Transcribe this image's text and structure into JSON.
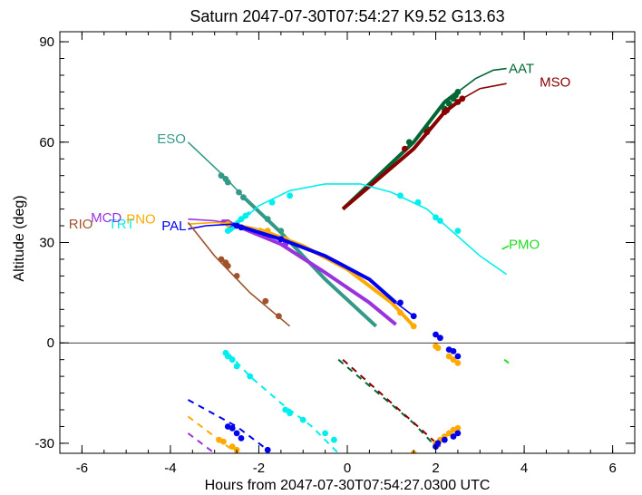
{
  "chart_data": {
    "type": "line",
    "title": "Saturn 2047-07-30T07:54:27  K9.52  G13.63",
    "xlabel": "Hours from 2047-07-30T07:54:27.0300 UTC",
    "ylabel": "Altitude (deg)",
    "xlim": [
      -6.5,
      6.5
    ],
    "ylim": [
      -33,
      93
    ],
    "xticks": [
      -6,
      -4,
      -2,
      0,
      2,
      4,
      6
    ],
    "yticks": [
      -30,
      0,
      30,
      60,
      90
    ],
    "xtick_labels": [
      "-6",
      "-4",
      "-2",
      "0",
      "2",
      "4",
      "6"
    ],
    "ytick_labels": [
      "-30",
      "0",
      "30",
      "60",
      "90"
    ],
    "horizon_line": 0,
    "grid": false,
    "colors": {
      "AAT": "#006633",
      "MSO": "#880000",
      "ESO": "#339988",
      "PMO": "#22dd22",
      "TRT": "#00eeee",
      "MCD": "#9933dd",
      "PNO": "#ffaa00",
      "PAL": "#0000ee",
      "RIO": "#a0522d"
    },
    "series": [
      {
        "name": "AAT",
        "label_pos": [
          3.65,
          82
        ],
        "thick": [
          [
            -0.1,
            40
          ],
          [
            1.5,
            60
          ],
          [
            2.2,
            72
          ],
          [
            2.5,
            75
          ]
        ],
        "thin": [
          [
            2.5,
            75
          ],
          [
            2.9,
            79
          ],
          [
            3.3,
            81.5
          ],
          [
            3.6,
            82
          ]
        ],
        "dashed": [
          [
            -0.2,
            -5
          ],
          [
            1.5,
            -24
          ],
          [
            2.0,
            -31
          ]
        ],
        "points": [
          [
            1.4,
            60
          ],
          [
            1.8,
            64
          ],
          [
            2.2,
            70
          ],
          [
            2.3,
            71.5
          ],
          [
            2.4,
            73
          ],
          [
            2.45,
            74
          ],
          [
            2.5,
            75
          ]
        ]
      },
      {
        "name": "MSO",
        "label_pos": [
          4.35,
          78
        ],
        "thick": [
          [
            -0.1,
            40
          ],
          [
            1.5,
            58
          ],
          [
            2.2,
            69
          ],
          [
            2.6,
            73
          ]
        ],
        "thin": [
          [
            2.6,
            73
          ],
          [
            3.0,
            76
          ],
          [
            3.6,
            77.5
          ]
        ],
        "dashed": [
          [
            -0.1,
            -5
          ],
          [
            1.6,
            -25
          ],
          [
            2.1,
            -31
          ]
        ],
        "points": [
          [
            1.3,
            58
          ],
          [
            1.8,
            63
          ],
          [
            2.2,
            69
          ],
          [
            2.25,
            69.5
          ],
          [
            2.5,
            72
          ],
          [
            2.6,
            73
          ]
        ]
      },
      {
        "name": "ESO",
        "label_pos": [
          -4.3,
          61
        ],
        "thin": [
          [
            -3.6,
            60
          ],
          [
            -2.8,
            50
          ],
          [
            -2.3,
            43
          ]
        ],
        "thick": [
          [
            -2.3,
            43
          ],
          [
            -1.5,
            33
          ],
          [
            -0.5,
            19
          ],
          [
            0.65,
            5
          ]
        ],
        "points": [
          [
            -2.85,
            50
          ],
          [
            -2.75,
            49
          ],
          [
            -2.7,
            48
          ],
          [
            -2.45,
            45
          ],
          [
            -2.35,
            43.5
          ],
          [
            -1.8,
            37
          ],
          [
            -1.5,
            33.5
          ]
        ]
      },
      {
        "name": "PMO",
        "label_pos": [
          3.65,
          29.5
        ],
        "thin": [
          [
            3.5,
            28
          ],
          [
            3.65,
            29
          ]
        ],
        "dashed": [
          [
            3.55,
            -5
          ],
          [
            3.65,
            -6
          ]
        ]
      },
      {
        "name": "TRT",
        "label_pos": [
          -5.4,
          35.5
        ],
        "thin": [
          [
            -2.7,
            33
          ],
          [
            -2.0,
            41
          ],
          [
            -1.3,
            45.5
          ],
          [
            -0.5,
            47.5
          ],
          [
            0.3,
            47.5
          ],
          [
            1.0,
            45
          ],
          [
            1.8,
            40
          ],
          [
            2.4,
            33
          ],
          [
            3.0,
            26
          ],
          [
            3.6,
            20.5
          ]
        ],
        "thick": [
          [
            -2.7,
            33
          ],
          [
            -2.5,
            36
          ],
          [
            -2.2,
            39
          ]
        ],
        "dashed": [
          [
            -2.7,
            -3
          ],
          [
            -2.2,
            -10
          ],
          [
            -1.5,
            -18
          ],
          [
            -0.8,
            -25
          ],
          [
            -0.2,
            -33
          ]
        ],
        "points": [
          [
            -2.7,
            33.5
          ],
          [
            -2.65,
            34
          ],
          [
            -2.6,
            34.5
          ],
          [
            -2.5,
            35.5
          ],
          [
            -2.4,
            37
          ],
          [
            -2.3,
            38
          ],
          [
            -1.7,
            42
          ],
          [
            -1.3,
            44
          ],
          [
            1.2,
            44
          ],
          [
            1.6,
            42
          ],
          [
            2.0,
            37.5
          ],
          [
            2.1,
            36.5
          ],
          [
            2.5,
            33.5
          ],
          [
            -2.75,
            -3
          ],
          [
            -2.7,
            -4
          ],
          [
            -2.6,
            -5
          ],
          [
            -2.5,
            -7
          ],
          [
            -2.2,
            -10
          ],
          [
            -1.4,
            -20
          ],
          [
            -1.3,
            -21
          ],
          [
            -1.0,
            -23
          ],
          [
            -0.5,
            -27
          ],
          [
            -0.3,
            -29
          ]
        ]
      },
      {
        "name": "MCD",
        "label_pos": [
          -5.8,
          37.5
        ],
        "thin": [
          [
            -3.6,
            37
          ],
          [
            -3.0,
            36.5
          ],
          [
            -2.6,
            35.5
          ]
        ],
        "thick": [
          [
            -2.6,
            35.5
          ],
          [
            -1.5,
            29.5
          ],
          [
            -0.5,
            21
          ],
          [
            0.5,
            12
          ],
          [
            1.1,
            5.5
          ]
        ],
        "dashed": [
          [
            -3.6,
            -27
          ],
          [
            -3.0,
            -33
          ]
        ],
        "points": [
          [
            -2.8,
            36
          ],
          [
            -2.75,
            36
          ],
          [
            -2.7,
            36
          ],
          [
            -2.65,
            35.5
          ],
          [
            -1.8,
            32
          ],
          [
            -1.4,
            29.5
          ]
        ]
      },
      {
        "name": "PNO",
        "label_pos": [
          -5.0,
          37
        ],
        "thin": [
          [
            -3.6,
            35.5
          ],
          [
            -3.0,
            36
          ],
          [
            -2.5,
            35.5
          ],
          [
            -2.0,
            34
          ]
        ],
        "thick": [
          [
            -2.0,
            34
          ],
          [
            -1.0,
            29
          ],
          [
            0.0,
            22
          ],
          [
            1.0,
            12
          ],
          [
            1.5,
            5
          ]
        ],
        "dashed": [
          [
            -3.6,
            -22
          ],
          [
            -2.5,
            -33
          ]
        ],
        "points": [
          [
            -2.7,
            35.5
          ],
          [
            -2.5,
            35
          ],
          [
            -1.8,
            33.5
          ],
          [
            -1.4,
            31
          ],
          [
            1.2,
            9
          ],
          [
            1.5,
            5
          ],
          [
            2.0,
            -1
          ],
          [
            2.05,
            -1.5
          ],
          [
            2.3,
            -4
          ],
          [
            2.4,
            -5
          ],
          [
            2.5,
            -6
          ],
          [
            -2.9,
            -29
          ],
          [
            -2.8,
            -29.5
          ],
          [
            -2.6,
            -31
          ],
          [
            -2.5,
            -32
          ],
          [
            2.0,
            -30
          ],
          [
            2.1,
            -29
          ],
          [
            2.2,
            -28
          ],
          [
            2.3,
            -27
          ],
          [
            2.4,
            -26
          ],
          [
            2.5,
            -25.5
          ],
          [
            1.5,
            -33
          ]
        ]
      },
      {
        "name": "PAL",
        "label_pos": [
          -4.2,
          35
        ],
        "thin": [
          [
            -3.6,
            34
          ],
          [
            -3.2,
            35
          ],
          [
            -2.6,
            35.5
          ]
        ],
        "thick": [
          [
            -2.6,
            35.5
          ],
          [
            -1.5,
            31
          ],
          [
            -0.5,
            26
          ],
          [
            0.5,
            19
          ],
          [
            1.1,
            12
          ]
        ],
        "thin2": [
          [
            1.1,
            12
          ],
          [
            1.5,
            8
          ]
        ],
        "dashed": [
          [
            -3.6,
            -17
          ],
          [
            -2.5,
            -25
          ],
          [
            -1.8,
            -32
          ]
        ],
        "points": [
          [
            -2.5,
            35
          ],
          [
            -2.4,
            34.5
          ],
          [
            -1.5,
            31
          ],
          [
            1.2,
            12
          ],
          [
            1.5,
            8
          ],
          [
            2.0,
            2.5
          ],
          [
            2.1,
            1.5
          ],
          [
            2.3,
            -2
          ],
          [
            2.4,
            -2.5
          ],
          [
            2.5,
            -4
          ],
          [
            -2.7,
            -25
          ],
          [
            -2.6,
            -25.5
          ],
          [
            -2.5,
            -27
          ],
          [
            -2.4,
            -28.5
          ],
          [
            -1.8,
            -32
          ],
          [
            2.0,
            -31
          ],
          [
            2.05,
            -30
          ],
          [
            2.2,
            -29
          ],
          [
            2.4,
            -28
          ],
          [
            2.5,
            -27
          ]
        ]
      },
      {
        "name": "RIO",
        "label_pos": [
          -6.3,
          35.5
        ],
        "thin": [
          [
            -3.6,
            36
          ],
          [
            -3.0,
            26
          ],
          [
            -2.2,
            15
          ],
          [
            -1.3,
            5
          ]
        ],
        "points": [
          [
            -2.85,
            25
          ],
          [
            -2.75,
            24
          ],
          [
            -2.7,
            23
          ],
          [
            -2.5,
            20
          ],
          [
            -1.85,
            12.5
          ],
          [
            -1.55,
            8
          ]
        ]
      }
    ]
  }
}
